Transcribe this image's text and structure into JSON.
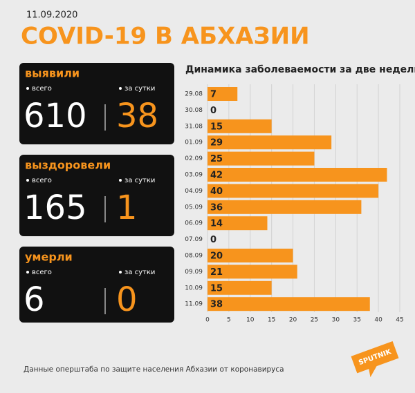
{
  "date": "11.09.2020",
  "title": "COVID-19 В АБХАЗИИ",
  "stats": [
    {
      "label": "выявили",
      "total_label": "всего",
      "total": 610,
      "daily_label": "за сутки",
      "daily": 38
    },
    {
      "label": "выздоровели",
      "total_label": "всего",
      "total": 165,
      "daily_label": "за сутки",
      "daily": 1
    },
    {
      "label": "умерли",
      "total_label": "всего",
      "total": 6,
      "daily_label": "за сутки",
      "daily": 0
    }
  ],
  "source": "Данные оперштаба по защите населения Абхазии от коронавируса",
  "logo": "SPUTNIK",
  "chart_data": {
    "type": "bar",
    "orientation": "horizontal",
    "title": "Динамика заболеваемости за две недели",
    "categories": [
      "29.08",
      "30.08",
      "31.08",
      "01.09",
      "02.09",
      "03.09",
      "04.09",
      "05.09",
      "06.09",
      "07.09",
      "08.09",
      "09.09",
      "10.09",
      "11.09"
    ],
    "values": [
      7,
      0,
      15,
      29,
      25,
      42,
      40,
      36,
      14,
      0,
      20,
      21,
      15,
      38
    ],
    "color": "#f7941d",
    "xlim": [
      0,
      45
    ],
    "xticks": [
      0,
      5,
      10,
      15,
      20,
      25,
      30,
      35,
      40,
      45
    ],
    "grid": true
  }
}
